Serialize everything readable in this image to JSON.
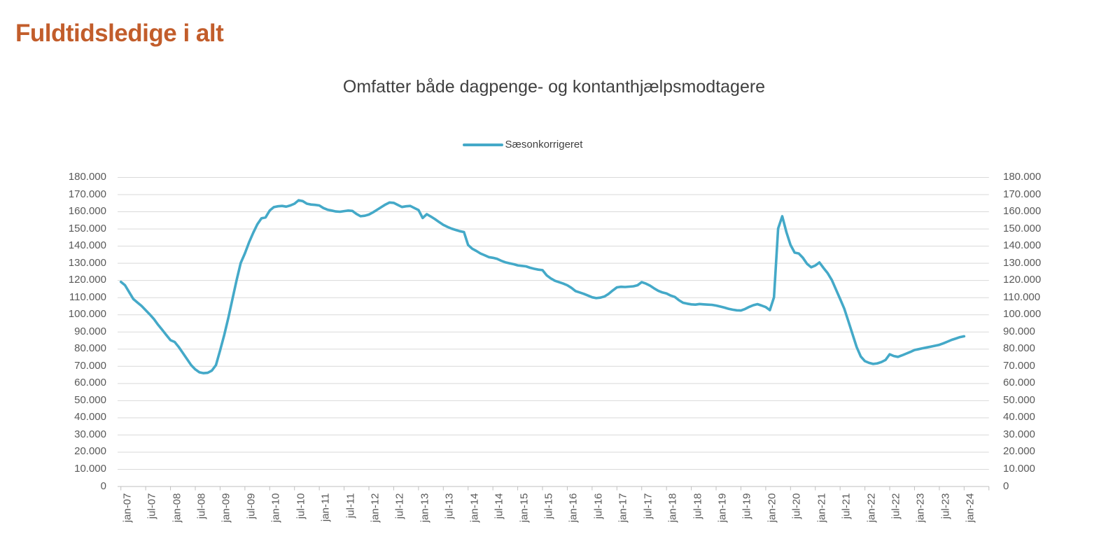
{
  "page": {
    "background": "#FFFFFF"
  },
  "header": {
    "title": "Fuldtidsledige i alt",
    "title_color": "#C25D2B"
  },
  "chart": {
    "subtitle": "Omfatter både dagpenge- og kontanthjælpsmodtagere",
    "legend": {
      "label": "Sæsonkorrigeret",
      "color": "#44A9C8"
    },
    "colors": {
      "gridline": "#D9D9D9",
      "axis_line": "#BFBFBF",
      "axis_text": "#595959",
      "subtitle_text": "#404040"
    }
  },
  "chart_data": {
    "type": "line",
    "title": "Omfatter både dagpenge- og kontanthjælpsmodtagere",
    "xlabel": "",
    "ylabel": "",
    "ylim": [
      0,
      180000
    ],
    "grid": "horizontal",
    "legend_position": "top-center",
    "y_tick_labels_bottom_to_top": [
      "0",
      "10.000",
      "20.000",
      "30.000",
      "40.000",
      "50.000",
      "60.000",
      "70.000",
      "80.000",
      "90.000",
      "100.000",
      "110.000",
      "120.000",
      "130.000",
      "140.000",
      "150.000",
      "160.000",
      "170.000",
      "180.000"
    ],
    "y_axis_sides": "both",
    "x_tick_labels": [
      "jan-07",
      "jul-07",
      "jan-08",
      "jul-08",
      "jan-09",
      "jul-09",
      "jan-10",
      "jul-10",
      "jan-11",
      "jul-11",
      "jan-12",
      "jul-12",
      "jan-13",
      "jul-13",
      "jan-14",
      "jul-14",
      "jan-15",
      "jul-15",
      "jan-16",
      "jul-16",
      "jan-17",
      "jul-17",
      "jan-18",
      "jul-18",
      "jan-19",
      "jul-19",
      "jan-20",
      "jul-20",
      "jan-21",
      "jul-21",
      "jan-22",
      "jul-22",
      "jan-23",
      "jul-23",
      "jan-24"
    ],
    "x_tick_label_rotation_deg": 90,
    "series": [
      {
        "name": "Sæsonkorrigeret",
        "color": "#44A9C8",
        "x_start": "jan-07",
        "x_interval": "1 month",
        "x_end": "jan-24",
        "values": [
          119000,
          117000,
          113000,
          109000,
          107000,
          105000,
          102500,
          100000,
          97300,
          94000,
          91000,
          88000,
          85000,
          84000,
          81000,
          77500,
          74000,
          70500,
          68000,
          66300,
          65800,
          66000,
          67300,
          70500,
          79000,
          88000,
          98000,
          109000,
          120000,
          130000,
          135500,
          142000,
          147500,
          152500,
          156000,
          156500,
          160500,
          162500,
          163000,
          163200,
          162800,
          163500,
          164500,
          166500,
          166000,
          164500,
          164000,
          163800,
          163500,
          162000,
          161000,
          160500,
          160000,
          159800,
          160200,
          160500,
          160300,
          158500,
          157200,
          157500,
          158200,
          159500,
          161000,
          162500,
          164000,
          165200,
          165000,
          163800,
          162600,
          163000,
          163200,
          162000,
          160800,
          156200,
          158400,
          157000,
          155500,
          153800,
          152200,
          151000,
          150000,
          149200,
          148500,
          148000,
          140500,
          138300,
          137000,
          135500,
          134500,
          133400,
          133000,
          132400,
          131300,
          130400,
          129800,
          129300,
          128600,
          128300,
          128000,
          127200,
          126600,
          126100,
          125800,
          122800,
          121000,
          119600,
          118800,
          118000,
          117000,
          115500,
          113600,
          112800,
          112000,
          111000,
          110000,
          109500,
          109800,
          110500,
          112000,
          114000,
          115800,
          116100,
          116000,
          116200,
          116400,
          117000,
          118800,
          118000,
          116800,
          115200,
          113800,
          112800,
          112200,
          111000,
          110200,
          108300,
          106800,
          106300,
          105900,
          105700,
          106100,
          105900,
          105700,
          105600,
          105200,
          104600,
          104000,
          103300,
          102800,
          102400,
          102300,
          103200,
          104400,
          105400,
          106000,
          105200,
          104300,
          102500,
          110000,
          150000,
          157200,
          148000,
          140500,
          136000,
          135500,
          133000,
          129500,
          127500,
          128500,
          130300,
          127000,
          124000,
          120000,
          114500,
          109000,
          103400,
          96000,
          88500,
          81000,
          75500,
          72800,
          71800,
          71200,
          71500,
          72300,
          73500,
          76800,
          75800,
          75300,
          76200,
          77200,
          78200,
          79300,
          79800,
          80300,
          80800,
          81300,
          81800,
          82300,
          83200,
          84200,
          85200,
          86000,
          86800,
          87300
        ]
      }
    ]
  }
}
